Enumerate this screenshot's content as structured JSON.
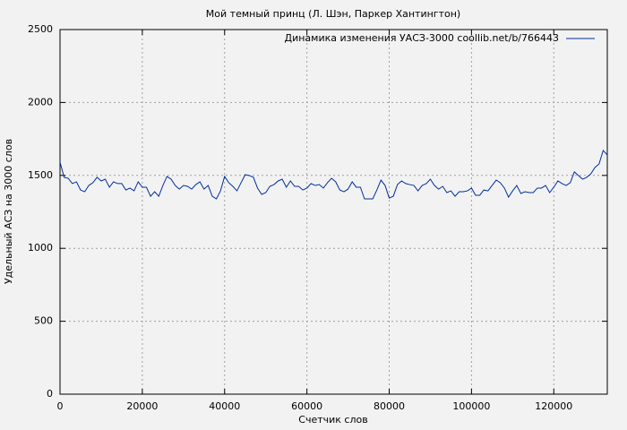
{
  "chart_data": {
    "type": "line",
    "title": "Мой темный принц (Л. Шэн, Паркер Хантингтон)",
    "x_label": "Счетчик слов",
    "y_label": "Удельный АСЗ на 3000 слов",
    "x": [
      0,
      1000,
      2000,
      3000,
      4000,
      5000,
      6000,
      7000,
      8000,
      9000,
      10000,
      11000,
      12000,
      13000,
      14000,
      15000,
      16000,
      17000,
      18000,
      19000,
      20000,
      21000,
      22000,
      23000,
      24000,
      25000,
      26000,
      27000,
      28000,
      29000,
      30000,
      31000,
      32000,
      33000,
      34000,
      35000,
      36000,
      37000,
      38000,
      39000,
      40000,
      41000,
      42000,
      43000,
      44000,
      45000,
      46000,
      47000,
      48000,
      49000,
      50000,
      51000,
      52000,
      53000,
      54000,
      55000,
      56000,
      57000,
      58000,
      59000,
      60000,
      61000,
      62000,
      63000,
      64000,
      65000,
      66000,
      67000,
      68000,
      69000,
      70000,
      71000,
      72000,
      73000,
      74000,
      75000,
      76000,
      77000,
      78000,
      79000,
      80000,
      81000,
      82000,
      83000,
      84000,
      85000,
      86000,
      87000,
      88000,
      89000,
      90000,
      91000,
      92000,
      93000,
      94000,
      95000,
      96000,
      97000,
      98000,
      99000,
      100000,
      101000,
      102000,
      103000,
      104000,
      105000,
      106000,
      107000,
      108000,
      109000,
      110000,
      111000,
      112000,
      113000,
      114000,
      115000,
      116000,
      117000,
      118000,
      119000,
      120000,
      121000,
      122000,
      123000,
      124000,
      125000,
      126000,
      127000,
      128000,
      129000,
      130000,
      131000,
      132000,
      133000
    ],
    "series": [
      {
        "name": "Динамика изменения УАСЗ-3000 coollib.net/b/766443",
        "color": "#00309c",
        "values": [
          1591,
          1487,
          1480,
          1444,
          1456,
          1400,
          1388,
          1431,
          1450,
          1487,
          1462,
          1474,
          1419,
          1456,
          1444,
          1444,
          1400,
          1413,
          1394,
          1456,
          1419,
          1419,
          1357,
          1388,
          1357,
          1431,
          1493,
          1474,
          1431,
          1406,
          1431,
          1425,
          1406,
          1437,
          1456,
          1406,
          1431,
          1357,
          1339,
          1394,
          1493,
          1450,
          1425,
          1394,
          1450,
          1505,
          1499,
          1487,
          1413,
          1370,
          1382,
          1425,
          1437,
          1462,
          1474,
          1419,
          1462,
          1425,
          1425,
          1400,
          1413,
          1444,
          1431,
          1437,
          1413,
          1450,
          1480,
          1456,
          1400,
          1388,
          1406,
          1456,
          1419,
          1419,
          1339,
          1339,
          1339,
          1400,
          1468,
          1431,
          1345,
          1357,
          1437,
          1462,
          1444,
          1437,
          1431,
          1394,
          1431,
          1444,
          1474,
          1431,
          1406,
          1425,
          1382,
          1394,
          1357,
          1388,
          1388,
          1394,
          1413,
          1364,
          1364,
          1400,
          1394,
          1431,
          1468,
          1450,
          1413,
          1351,
          1394,
          1431,
          1376,
          1388,
          1382,
          1382,
          1413,
          1413,
          1431,
          1382,
          1419,
          1462,
          1444,
          1431,
          1450,
          1524,
          1499,
          1474,
          1487,
          1511,
          1554,
          1579,
          1671,
          1640
        ]
      }
    ],
    "xlim": [
      0,
      133000
    ],
    "ylim": [
      0,
      2500
    ],
    "xticks": [
      0,
      20000,
      40000,
      60000,
      80000,
      100000,
      120000
    ],
    "yticks": [
      0,
      500,
      1000,
      1500,
      2000,
      2500
    ],
    "grid": true,
    "legend": "top-right"
  }
}
